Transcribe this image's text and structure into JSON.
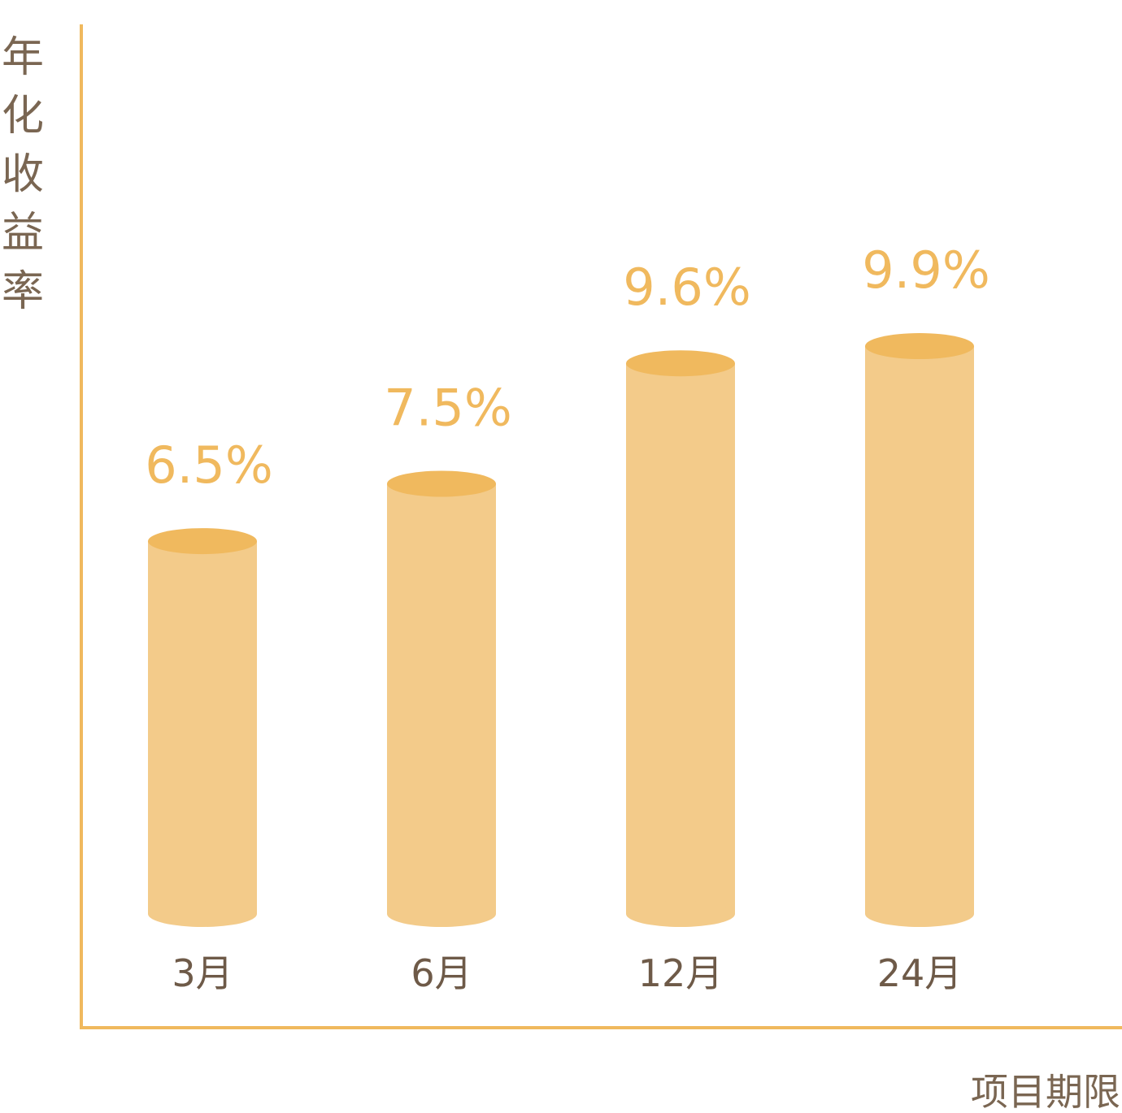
{
  "chart_data": {
    "type": "bar",
    "ylabel": "年化收益率",
    "xlabel": "项目期限",
    "categories": [
      "3月",
      "6月",
      "12月",
      "24月"
    ],
    "values": [
      6.5,
      7.5,
      9.6,
      9.9
    ],
    "value_labels": [
      "6.5%",
      "7.5%",
      "9.6%",
      "9.9%"
    ],
    "ylim": [
      0,
      10.5
    ],
    "grid": false,
    "legend": "none",
    "bar_style": "cylinder"
  },
  "colors": {
    "axis": "#f0b95e",
    "bar_body": "#f3cb8a",
    "bar_top": "#f0b95e",
    "value_text": "#f0b95e",
    "axis_text": "#7a6652"
  }
}
